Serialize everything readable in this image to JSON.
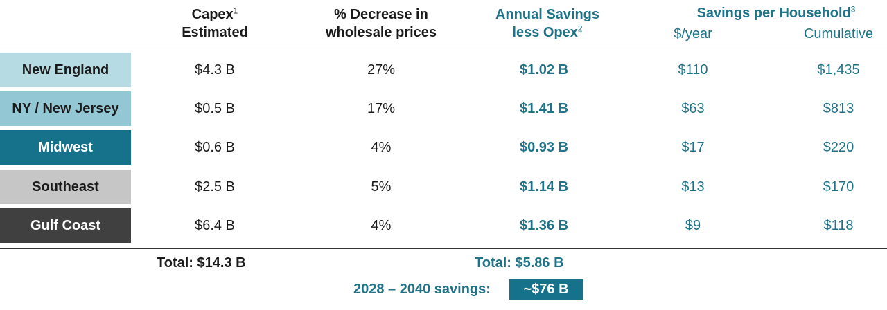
{
  "headers": {
    "capex": {
      "line1": "Capex",
      "sup": "1",
      "line2": "Estimated"
    },
    "decrease": {
      "line1": "% Decrease in",
      "line2": "wholesale prices"
    },
    "savings": {
      "line1": "Annual Savings",
      "line2": "less Opex",
      "sup": "2"
    },
    "household": {
      "title": "Savings per Household",
      "sup": "3",
      "col_year": "$/year",
      "col_cum": "Cumulative"
    }
  },
  "rows": [
    {
      "region": "New England",
      "bg": "#b7dbe3",
      "fg": "#1a1a1a",
      "capex": "$4.3 B",
      "decrease": "27%",
      "savings": "$1.02 B",
      "per_year": "$110",
      "cumulative": "$1,435"
    },
    {
      "region": "NY / New Jersey",
      "bg": "#93c7d3",
      "fg": "#1a1a1a",
      "capex": "$0.5 B",
      "decrease": "17%",
      "savings": "$1.41 B",
      "per_year": "$63",
      "cumulative": "$813"
    },
    {
      "region": "Midwest",
      "bg": "#16728a",
      "fg": "#ffffff",
      "capex": "$0.6 B",
      "decrease": "4%",
      "savings": "$0.93 B",
      "per_year": "$17",
      "cumulative": "$220"
    },
    {
      "region": "Southeast",
      "bg": "#c6c6c6",
      "fg": "#1a1a1a",
      "capex": "$2.5 B",
      "decrease": "5%",
      "savings": "$1.14 B",
      "per_year": "$13",
      "cumulative": "$170"
    },
    {
      "region": "Gulf Coast",
      "bg": "#404040",
      "fg": "#ffffff",
      "capex": "$6.4 B",
      "decrease": "4%",
      "savings": "$1.36 B",
      "per_year": "$9",
      "cumulative": "$118"
    }
  ],
  "totals": {
    "capex": "Total: $14.3 B",
    "savings": "Total: $5.86 B",
    "period_label": "2028 – 2040 savings:",
    "period_value": "~$76 B"
  },
  "colors": {
    "accent": "#1e7389",
    "badge": "#16728a"
  }
}
